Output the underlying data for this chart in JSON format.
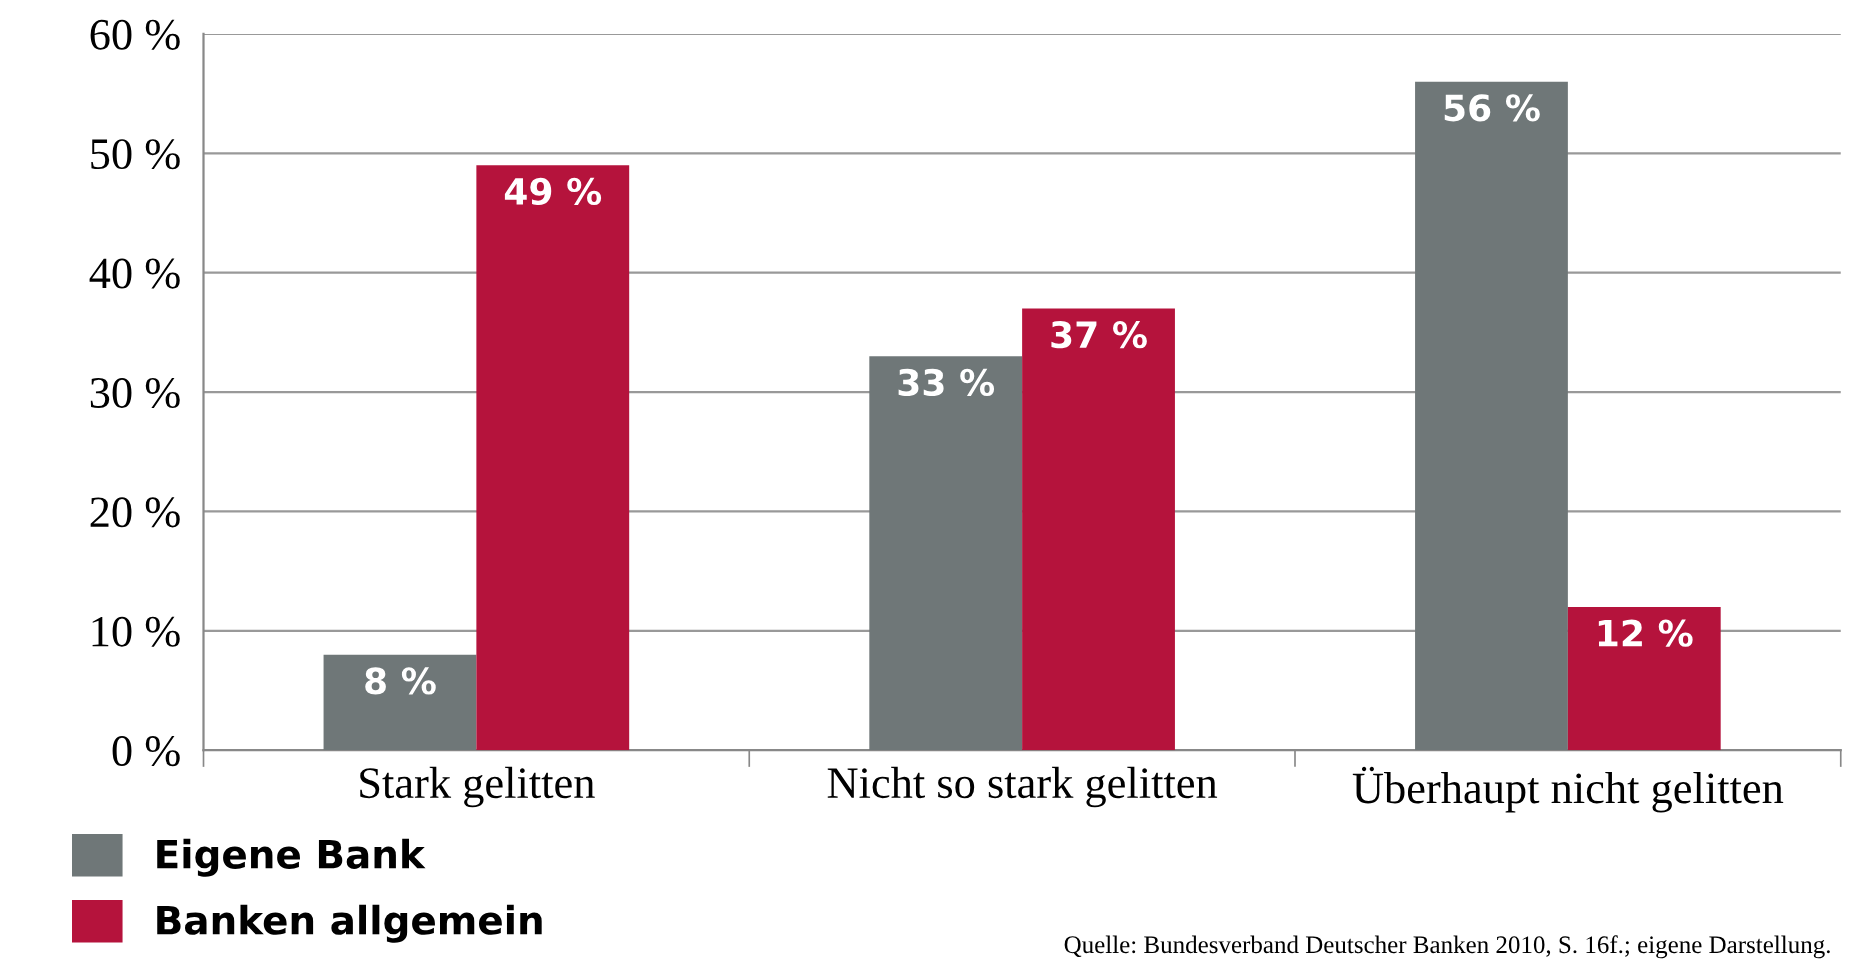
{
  "chart_data": {
    "type": "bar",
    "categories": [
      "Stark gelitten",
      "Nicht so stark gelitten",
      "Überhaupt nicht gelitten"
    ],
    "series": [
      {
        "name": "Eigene Bank",
        "color": "#6f7778",
        "values": [
          8,
          33,
          56
        ],
        "value_labels": [
          "8 %",
          "33 %",
          "56 %"
        ]
      },
      {
        "name": "Banken allgemein",
        "color": "#b5133c",
        "values": [
          49,
          37,
          12
        ],
        "value_labels": [
          "49 %",
          "37 %",
          "12 %"
        ]
      }
    ],
    "ylim": [
      0,
      60
    ],
    "yticks": [
      {
        "value": 0,
        "label": "0 %"
      },
      {
        "value": 10,
        "label": "10 %"
      },
      {
        "value": 20,
        "label": "20 %"
      },
      {
        "value": 30,
        "label": "30 %"
      },
      {
        "value": 40,
        "label": "40 %"
      },
      {
        "value": 50,
        "label": "50 %"
      },
      {
        "value": 60,
        "label": "60 %"
      }
    ],
    "grid": "y",
    "legend": "bottom left",
    "annotations": [
      "Quelle: Bundesverband Deutscher Banken 2010, S. 16f.; eigene Darstellung."
    ]
  }
}
